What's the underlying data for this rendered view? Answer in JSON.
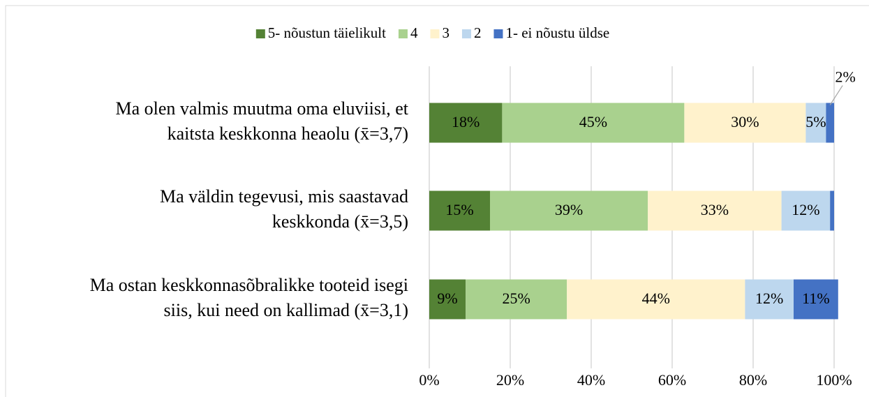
{
  "chart_data": {
    "type": "stacked-bar-horizontal",
    "categories": [
      [
        "Ma olen valmis muutma oma eluviisi, et",
        "kaitsta keskkonna heaolu (x̄=3,7)"
      ],
      [
        "Ma väldin tegevusi, mis saastavad",
        "keskkonda (x̄=3,5)"
      ],
      [
        "Ma ostan keskkonnasõbralikke tooteid isegi",
        "siis, kui need on kallimad (x̄=3,1)"
      ]
    ],
    "series": [
      {
        "name": "5- nõustun täielikult",
        "color": "#548235",
        "values": [
          18,
          15,
          9
        ],
        "value_labels": [
          "18%",
          "15%",
          "9%"
        ]
      },
      {
        "name": "4",
        "color": "#a9d18e",
        "values": [
          45,
          39,
          25
        ],
        "value_labels": [
          "45%",
          "39%",
          "25%"
        ]
      },
      {
        "name": "3",
        "color": "#fff2cc",
        "values": [
          30,
          33,
          44
        ],
        "value_labels": [
          "30%",
          "33%",
          "44%"
        ]
      },
      {
        "name": "2",
        "color": "#bdd7ee",
        "values": [
          5,
          12,
          12
        ],
        "value_labels": [
          "5%",
          "12%",
          "12%"
        ]
      },
      {
        "name": "1- ei nõustu üldse",
        "color": "#4472c4",
        "values": [
          2,
          1,
          11
        ],
        "value_labels": [
          "2%",
          null,
          "11%"
        ]
      }
    ],
    "xlim": [
      0,
      100
    ],
    "xticks": [
      {
        "value": 0,
        "label": "0%"
      },
      {
        "value": 20,
        "label": "20%"
      },
      {
        "value": 40,
        "label": "40%"
      },
      {
        "value": 60,
        "label": "60%"
      },
      {
        "value": 80,
        "label": "80%"
      },
      {
        "value": 100,
        "label": "100%"
      }
    ],
    "grid": true,
    "legend": "top"
  }
}
